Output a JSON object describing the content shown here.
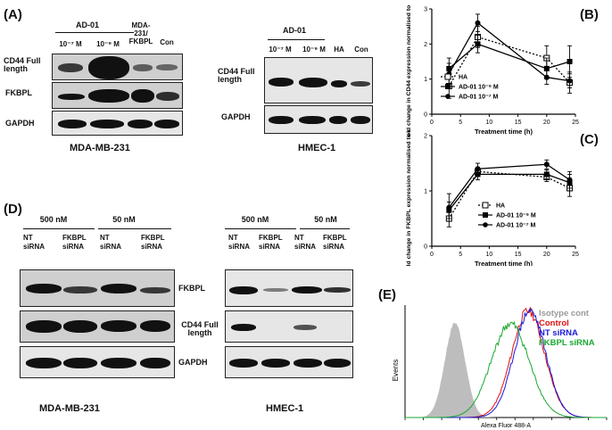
{
  "panels": {
    "A": "(A)",
    "B": "(B)",
    "C": "(C)",
    "D": "(D)",
    "E": "(E)"
  },
  "blotA_mda": {
    "group_label": "AD-01",
    "lanes": [
      "10⁻⁷ M",
      "10⁻⁹ M",
      "MDA-231/ FKBPL",
      "Con"
    ],
    "rows": [
      "CD44 Full length",
      "FKBPL",
      "GAPDH"
    ],
    "caption": "MDA-MB-231"
  },
  "blotA_hmec": {
    "group_label": "AD-01",
    "lanes": [
      "10⁻⁷ M",
      "10⁻⁹ M",
      "HA",
      "Con"
    ],
    "rows": [
      "CD44 Full length",
      "GAPDH"
    ],
    "caption": "HMEC-1"
  },
  "blotD": {
    "conc": [
      "500 nM",
      "50 nM",
      "500 nM",
      "50 nM"
    ],
    "lanes": [
      "NT siRNA",
      "FKBPL siRNA",
      "NT siRNA",
      "FKBPL siRNA"
    ],
    "rows": [
      "FKBPL",
      "CD44 Full length",
      "GAPDH"
    ],
    "caption_left": "MDA-MB-231",
    "caption_right": "HMEC-1"
  },
  "chartB_text": {
    "ylabel": "Fold change in CD44 expression normalised to control",
    "xlabel": "Treatment time (h)"
  },
  "chartC_text": {
    "ylabel": "Fold change in FKBPL expression normalised to controls",
    "xlabel": "Treatment time (h)"
  },
  "chartE_text": {
    "ylabel": "Events",
    "xlabel": "Alexa Fluor 488-A"
  },
  "chart_data": [
    {
      "type": "line",
      "xlabel": "Treatment time (h)",
      "ylabel": "Fold change in CD44 expression normalised to control",
      "xlim": [
        0,
        25
      ],
      "ylim": [
        0,
        3
      ],
      "xticks": [
        0,
        5,
        10,
        15,
        20,
        25
      ],
      "yticks": [
        0,
        1,
        2,
        3
      ],
      "x": [
        3,
        8,
        20,
        24
      ],
      "series": [
        {
          "name": "HA",
          "values": [
            0.8,
            2.2,
            1.6,
            0.9
          ],
          "err": [
            0.35,
            0.3,
            0.35,
            0.3
          ],
          "marker": "open-square",
          "style": "dotted",
          "color": "#000000"
        },
        {
          "name": "AD-01 10⁻⁹ M",
          "values": [
            1.3,
            2.0,
            1.3,
            1.5
          ],
          "err": [
            0.3,
            0.25,
            0.3,
            0.45
          ],
          "marker": "filled-square",
          "style": "solid",
          "color": "#000000"
        },
        {
          "name": "AD-01 10⁻⁷ M",
          "values": [
            1.15,
            2.6,
            1.05,
            0.95
          ],
          "err": [
            0.3,
            0.25,
            0.2,
            0.2
          ],
          "marker": "filled-circle",
          "style": "solid",
          "color": "#000000"
        }
      ],
      "legend": "bottom-left inside"
    },
    {
      "type": "line",
      "xlabel": "Treatment time (h)",
      "ylabel": "Fold change in FKBPL expression normalised to controls",
      "xlim": [
        0,
        25
      ],
      "ylim": [
        0,
        2
      ],
      "xticks": [
        0,
        5,
        10,
        15,
        20,
        25
      ],
      "yticks": [
        0,
        1,
        2
      ],
      "x": [
        3,
        8,
        20,
        24
      ],
      "series": [
        {
          "name": "HA",
          "values": [
            0.5,
            1.35,
            1.25,
            1.05
          ],
          "err": [
            0.15,
            0.08,
            0.08,
            0.15
          ],
          "marker": "open-square",
          "style": "dotted",
          "color": "#000000"
        },
        {
          "name": "AD-01 10⁻⁹ M",
          "values": [
            0.65,
            1.3,
            1.3,
            1.15
          ],
          "err": [
            0.15,
            0.1,
            0.08,
            0.15
          ],
          "marker": "filled-square",
          "style": "solid",
          "color": "#000000"
        },
        {
          "name": "AD-01 10⁻⁷ M",
          "values": [
            0.7,
            1.4,
            1.48,
            1.2
          ],
          "err": [
            0.25,
            0.1,
            0.08,
            0.15
          ],
          "marker": "filled-circle",
          "style": "solid",
          "color": "#000000"
        }
      ],
      "legend": "bottom-right inside"
    },
    {
      "type": "area",
      "xlabel": "Alexa Fluor 488-A",
      "ylabel": "Events",
      "series": [
        {
          "name": "Isotype cont",
          "color": "#bdbdbd",
          "peak": 0.22
        },
        {
          "name": "Control",
          "color": "#e01010",
          "peak": 0.57
        },
        {
          "name": "NT siRNA",
          "color": "#1a1adb",
          "peak": 0.57
        },
        {
          "name": "FKBPL siRNA",
          "color": "#18a830",
          "peak": 0.5
        }
      ],
      "legend": "top-right inside"
    }
  ]
}
